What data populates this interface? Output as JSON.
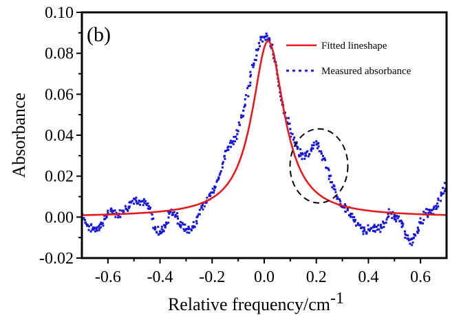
{
  "chart_data": {
    "type": "line",
    "panel_label": "(b)",
    "xlabel": "Relative frequency/cm",
    "xlabel_superscript": "-1",
    "ylabel": "Absorbance",
    "xlim": [
      -0.7,
      0.7
    ],
    "ylim": [
      -0.02,
      0.1
    ],
    "x_ticks": [
      -0.6,
      -0.4,
      -0.2,
      0.0,
      0.2,
      0.4,
      0.6
    ],
    "x_tick_labels": [
      "-0.6",
      "-0.4",
      "-0.2",
      "0.0",
      "0.2",
      "0.4",
      "0.6"
    ],
    "y_ticks": [
      -0.02,
      0.0,
      0.02,
      0.04,
      0.06,
      0.08,
      0.1
    ],
    "y_tick_labels": [
      "-0.02",
      "0.00",
      "0.02",
      "0.04",
      "0.06",
      "0.08",
      "0.10"
    ],
    "grid": false,
    "legend_position": "top-right",
    "series": [
      {
        "name": "Fitted lineshape",
        "style": "solid",
        "color": "#e8191d",
        "lorentzian": {
          "center": 0.015,
          "amplitude": 0.086,
          "hwhm": 0.075,
          "baseline": 0.0
        }
      },
      {
        "name": "Measured absorbance",
        "style": "dotted",
        "color": "#1414d8",
        "x": [
          -0.7,
          -0.68,
          -0.66,
          -0.64,
          -0.62,
          -0.6,
          -0.58,
          -0.56,
          -0.54,
          -0.52,
          -0.5,
          -0.48,
          -0.46,
          -0.44,
          -0.42,
          -0.4,
          -0.38,
          -0.36,
          -0.34,
          -0.32,
          -0.3,
          -0.28,
          -0.26,
          -0.24,
          -0.22,
          -0.2,
          -0.18,
          -0.16,
          -0.14,
          -0.12,
          -0.1,
          -0.08,
          -0.06,
          -0.04,
          -0.02,
          0.0,
          0.02,
          0.04,
          0.06,
          0.08,
          0.1,
          0.12,
          0.14,
          0.16,
          0.18,
          0.2,
          0.22,
          0.24,
          0.26,
          0.28,
          0.3,
          0.32,
          0.34,
          0.36,
          0.38,
          0.4,
          0.42,
          0.44,
          0.46,
          0.48,
          0.5,
          0.52,
          0.54,
          0.56,
          0.58,
          0.6,
          0.62,
          0.64,
          0.66,
          0.68,
          0.7
        ],
        "y": [
          0.002,
          -0.004,
          -0.006,
          -0.005,
          -0.003,
          0.002,
          0.003,
          0.001,
          0.003,
          0.005,
          0.009,
          0.008,
          0.007,
          0.004,
          -0.006,
          -0.007,
          -0.005,
          0.003,
          0.001,
          -0.004,
          -0.006,
          -0.006,
          -0.002,
          0.005,
          0.008,
          0.012,
          0.018,
          0.026,
          0.034,
          0.037,
          0.042,
          0.052,
          0.064,
          0.075,
          0.085,
          0.088,
          0.087,
          0.076,
          0.063,
          0.051,
          0.043,
          0.035,
          0.03,
          0.03,
          0.033,
          0.037,
          0.031,
          0.024,
          0.017,
          0.009,
          0.005,
          0.004,
          0.0,
          -0.003,
          -0.007,
          -0.006,
          -0.005,
          -0.006,
          -0.003,
          0.002,
          0.001,
          -0.002,
          -0.007,
          -0.013,
          -0.009,
          -0.003,
          0.002,
          0.002,
          0.004,
          0.011,
          0.016
        ]
      }
    ],
    "annotations": [
      {
        "type": "dashed-ellipse",
        "center_x": 0.21,
        "center_y": 0.025,
        "note": "highlighted deviation region"
      }
    ]
  }
}
